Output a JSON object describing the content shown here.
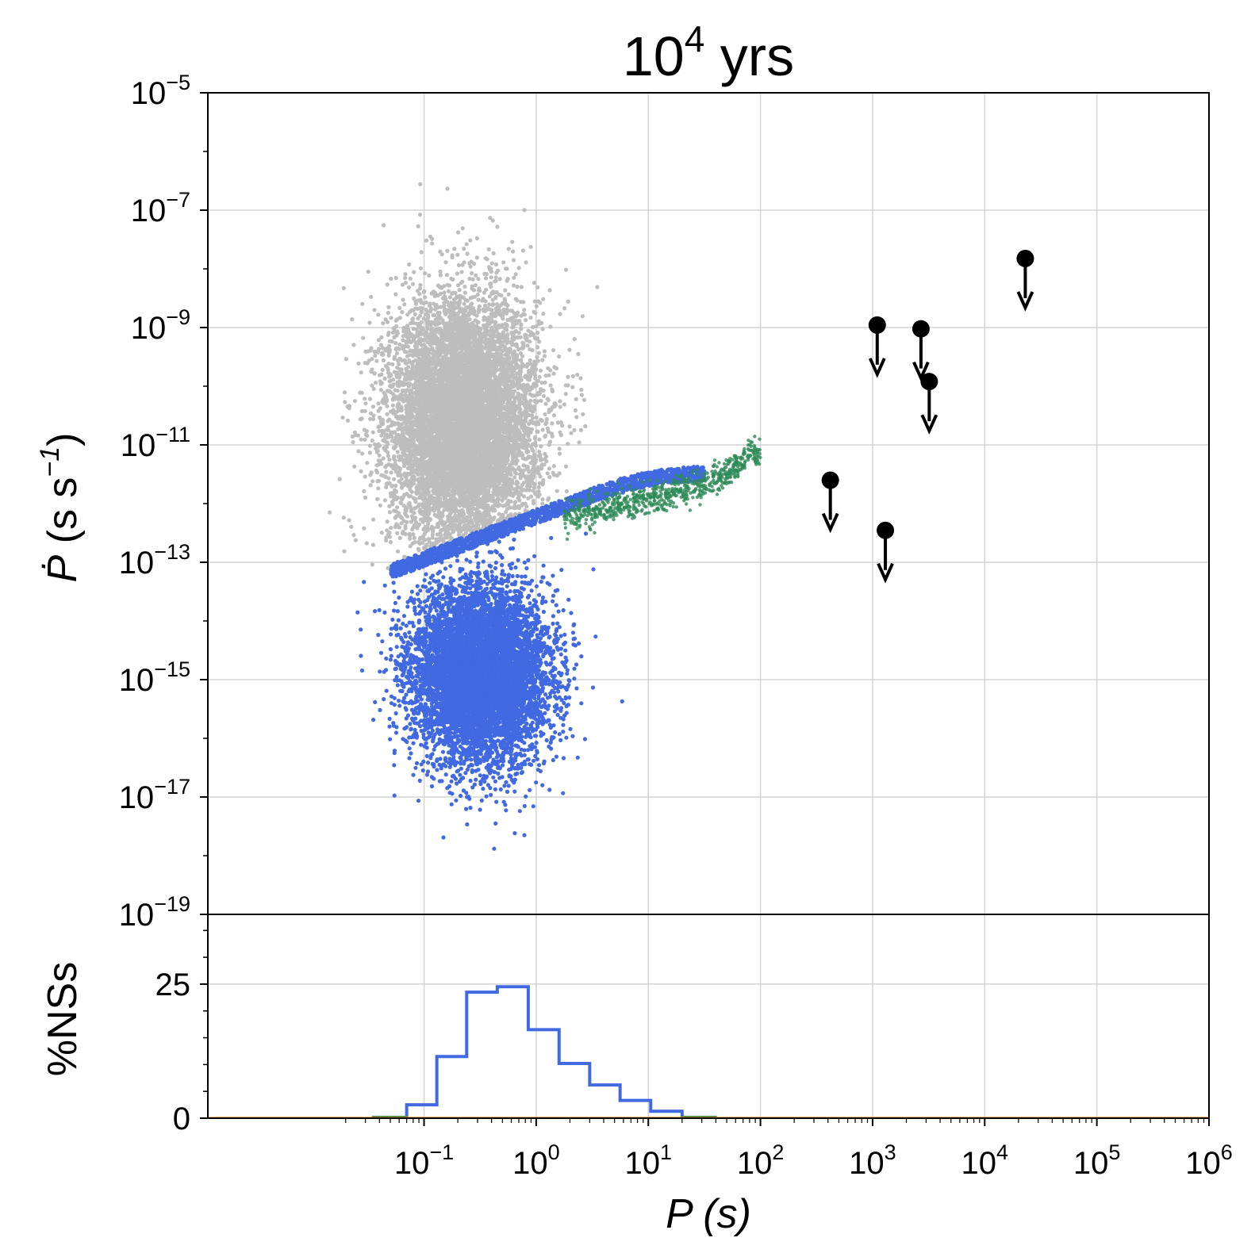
{
  "chart_data": [
    {
      "type": "scatter",
      "title": "10^4 yrs",
      "title_base": "10",
      "title_exp": "4",
      "title_rest": " yrs",
      "xlabel": "P (s)",
      "ylabel_symbol": "Ṗ",
      "ylabel_units": " (s s",
      "ylabel_exp": "−1",
      "ylabel_close": ")",
      "xscale": "log",
      "yscale": "log",
      "xlim": [
        0.00118,
        1000000
      ],
      "ylim": [
        1e-19,
        1e-05
      ],
      "grid": true,
      "xticks_exp": [
        "−1",
        "0",
        "1",
        "2",
        "3",
        "4",
        "5",
        "6"
      ],
      "yticks_exp": [
        "−19",
        "−17",
        "−15",
        "−13",
        "−11",
        "−9",
        "−7",
        "−5"
      ],
      "tick_base": "10",
      "colors": {
        "grey": "#bdbdbd",
        "blue": "#4169e1",
        "green": "#2e8b57",
        "black": "#000000"
      },
      "series": [
        {
          "key": "grey_cloud",
          "color": "#bdbdbd",
          "description_of_shape": "dense cloud above the blue boundary line",
          "x_log_range": [
            -1.9,
            0.3
          ],
          "y_log_range": [
            -13.2,
            -6.4
          ],
          "boundary": [
            [
              -1.3,
              -13.0
            ],
            [
              0.0,
              -12.1
            ],
            [
              0.9,
              -11.2
            ]
          ]
        },
        {
          "key": "blue_cloud",
          "color": "#4169e1",
          "x_log_range": [
            -1.4,
            0.5
          ],
          "y_log_range": [
            -18.0,
            -13.0
          ],
          "upper_track": [
            [
              -1.3,
              -13.0
            ],
            [
              0.0,
              -12.1
            ],
            [
              0.5,
              -11.8
            ],
            [
              1.0,
              -11.4
            ],
            [
              1.5,
              -11.1
            ]
          ]
        },
        {
          "key": "green_tail",
          "color": "#2e8b57",
          "points": [
            [
              0.9,
              -11.7
            ],
            [
              1.1,
              -11.6
            ],
            [
              1.3,
              -11.5
            ],
            [
              1.5,
              -11.4
            ],
            [
              1.7,
              -11.2
            ],
            [
              1.9,
              -10.9
            ]
          ]
        },
        {
          "key": "upper_limits",
          "color": "#000000",
          "marker": "circle with downward arrow",
          "points": [
            {
              "x": 420,
              "y": 2.5e-12
            },
            {
              "x": 1100,
              "y": 1.1e-09
            },
            {
              "x": 1300,
              "y": 3.5e-13
            },
            {
              "x": 2700,
              "y": 9.5e-10
            },
            {
              "x": 3200,
              "y": 1.2e-10
            },
            {
              "x": 23000,
              "y": 1.5e-08
            }
          ]
        }
      ]
    },
    {
      "type": "histogram",
      "ylabel": "%NSs",
      "xscale": "log",
      "xlim": [
        0.00118,
        1000000
      ],
      "ylim": [
        0,
        38
      ],
      "yticks": [
        "0",
        "25"
      ],
      "grid": true,
      "series": [
        {
          "key": "blue_hist",
          "color": "#4169e1",
          "bin_edges": [
            0.07,
            0.13,
            0.24,
            0.45,
            0.85,
            1.6,
            3.0,
            5.6,
            10.5,
            20
          ],
          "values": [
            2.5,
            11.5,
            23.5,
            24.5,
            16.5,
            10.2,
            6.2,
            3.3,
            1.3
          ]
        },
        {
          "key": "green_hist",
          "color": "#2e8b57",
          "bin_edges": [
            0.035,
            0.07,
            20,
            40
          ],
          "values": [
            0.25,
            0,
            0.25
          ]
        },
        {
          "key": "orange_baseline",
          "color": "#ff8c00",
          "bin_edges": [
            0.00118,
            1000000
          ],
          "values": [
            0.05
          ]
        }
      ]
    }
  ]
}
